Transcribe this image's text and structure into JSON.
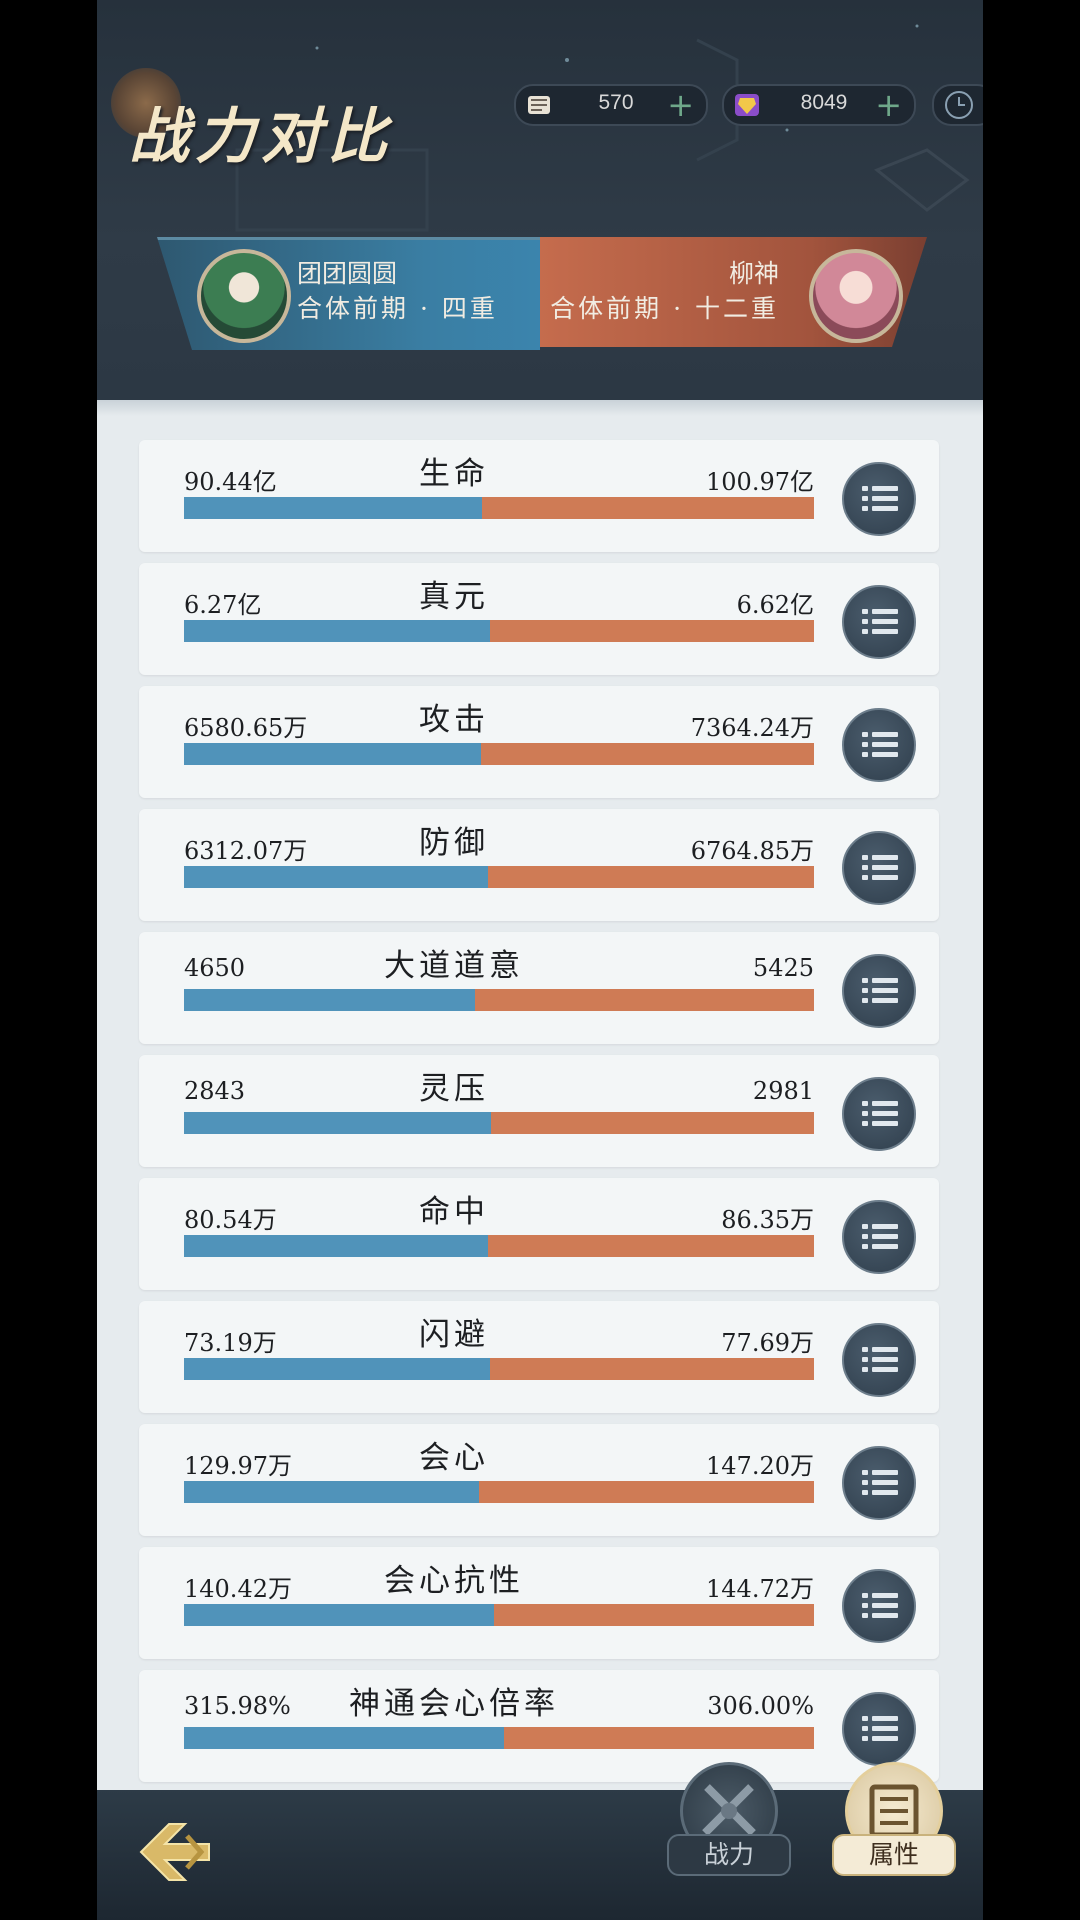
{
  "header": {
    "title": "战力对比",
    "currencies": [
      {
        "icon": "scroll-token-icon",
        "value": "570",
        "plus": "+"
      },
      {
        "icon": "purple-gem-icon",
        "value": "8049",
        "plus": "+"
      }
    ],
    "clock_icon": "clock-icon"
  },
  "players": {
    "left": {
      "name": "团团圆圆",
      "rank": "合体前期 · 四重",
      "color": "#3b84ad"
    },
    "right": {
      "name": "柳神",
      "rank": "合体前期 · 十二重",
      "color": "#c56c4d"
    }
  },
  "stats": [
    {
      "label": "生命",
      "left": "90.44亿",
      "right": "100.97亿",
      "left_share": 0.473
    },
    {
      "label": "真元",
      "left": "6.27亿",
      "right": "6.62亿",
      "left_share": 0.486
    },
    {
      "label": "攻击",
      "left": "6580.65万",
      "right": "7364.24万",
      "left_share": 0.472
    },
    {
      "label": "防御",
      "left": "6312.07万",
      "right": "6764.85万",
      "left_share": 0.483
    },
    {
      "label": "大道道意",
      "left": "4650",
      "right": "5425",
      "left_share": 0.462
    },
    {
      "label": "灵压",
      "left": "2843",
      "right": "2981",
      "left_share": 0.488
    },
    {
      "label": "命中",
      "left": "80.54万",
      "right": "86.35万",
      "left_share": 0.483
    },
    {
      "label": "闪避",
      "left": "73.19万",
      "right": "77.69万",
      "left_share": 0.485
    },
    {
      "label": "会心",
      "left": "129.97万",
      "right": "147.20万",
      "left_share": 0.469
    },
    {
      "label": "会心抗性",
      "left": "140.42万",
      "right": "144.72万",
      "left_share": 0.492
    },
    {
      "label": "神通会心倍率",
      "left": "315.98%",
      "right": "306.00%",
      "left_share": 0.508
    }
  ],
  "footer": {
    "tabs": [
      {
        "label": "战力",
        "icon": "crossed-swords-icon",
        "active": false
      },
      {
        "label": "属性",
        "icon": "scroll-list-icon",
        "active": true
      }
    ]
  },
  "colors": {
    "player_left": "#5093ba",
    "player_right": "#cf7b55"
  }
}
